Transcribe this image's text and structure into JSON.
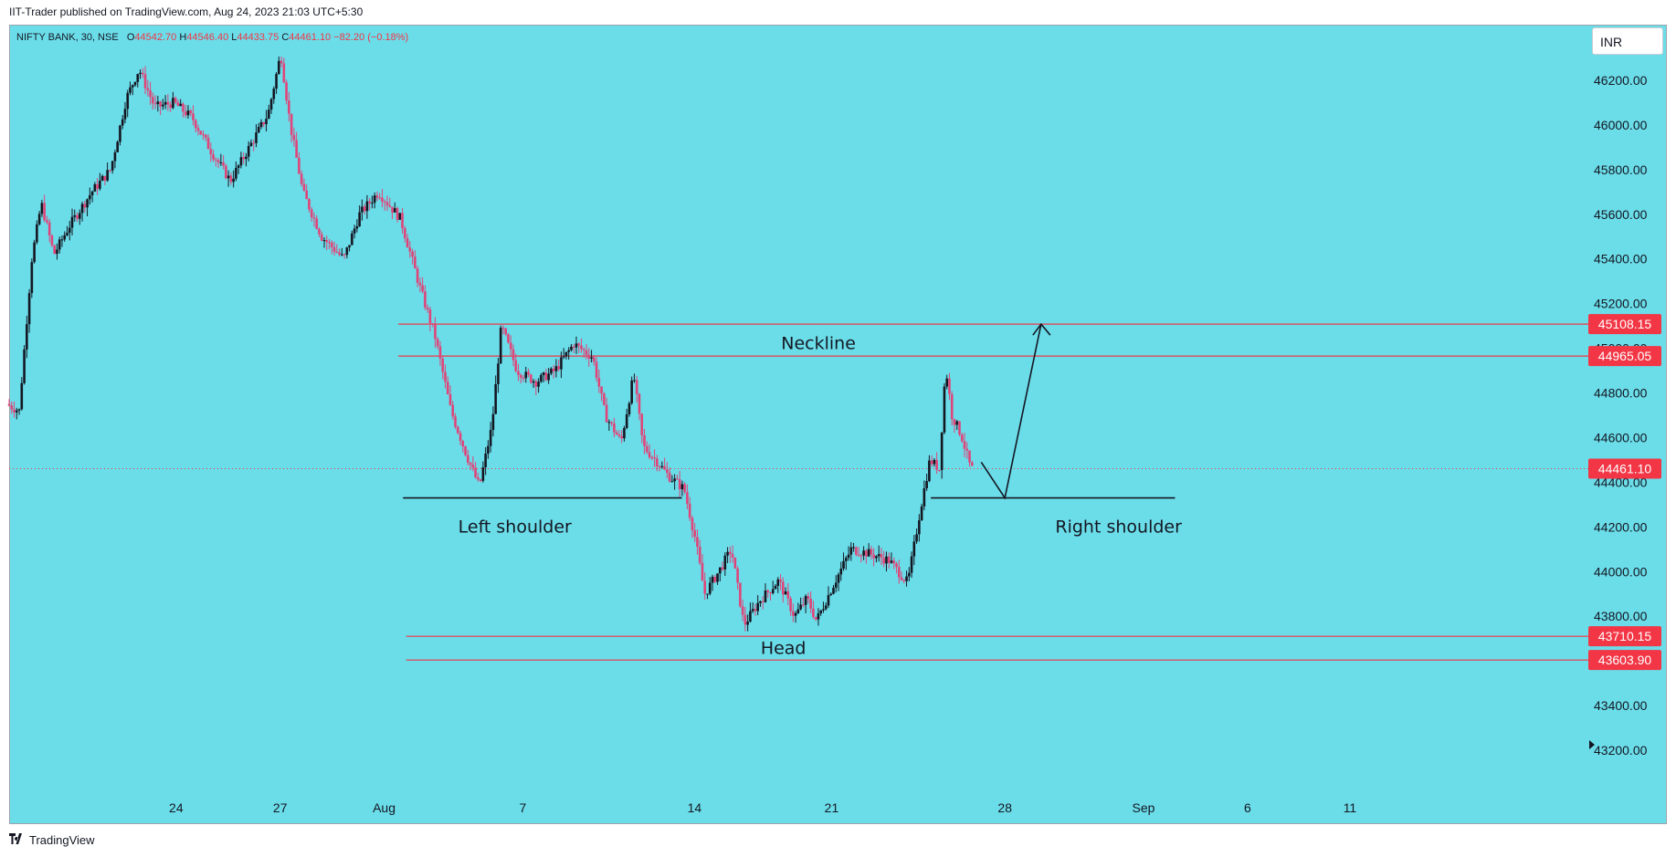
{
  "header": {
    "published_text": "IIT-Trader published on TradingView.com, Aug 24, 2023 21:03 UTC+5:30"
  },
  "symbol": {
    "name": "NIFTY BANK, 30, NSE",
    "o_label": "O",
    "o_value": "44542.70",
    "h_label": "H",
    "h_value": "44546.40",
    "l_label": "L",
    "l_value": "44433.75",
    "c_label": "C",
    "c_value": "44461.10",
    "change": "−82.20 (−0.18%)"
  },
  "currency": "INR",
  "footer": {
    "logo_icon": "tradingview-logo-icon",
    "brand": "TradingView"
  },
  "colors": {
    "background": "#6bdde9",
    "up_candle": "#131722",
    "down_candle": "#e04478",
    "level_line": "#f23645",
    "price_tag": "#f23645",
    "drawing": "#131722"
  },
  "chart_data": {
    "type": "candlestick",
    "title": "NIFTY BANK, 30, NSE",
    "y_axis": {
      "position": "right",
      "range": [
        43100,
        46550
      ],
      "ticks": [
        "46200.00",
        "46000.00",
        "45800.00",
        "45600.00",
        "45400.00",
        "45200.00",
        "45000.00",
        "44800.00",
        "44600.00",
        "44400.00",
        "44200.00",
        "44000.00",
        "43800.00",
        "43400.00",
        "43200.00"
      ]
    },
    "x_axis": {
      "ticks": [
        {
          "label": "24",
          "t": 0.106
        },
        {
          "label": "27",
          "t": 0.172
        },
        {
          "label": "Aug",
          "t": 0.238
        },
        {
          "label": "7",
          "t": 0.326
        },
        {
          "label": "14",
          "t": 0.435
        },
        {
          "label": "21",
          "t": 0.522
        },
        {
          "label": "28",
          "t": 0.632
        },
        {
          "label": "Sep",
          "t": 0.72
        },
        {
          "label": "6",
          "t": 0.786
        },
        {
          "label": "11",
          "t": 0.851
        }
      ]
    },
    "price_path": [
      [
        0.0,
        44750
      ],
      [
        0.008,
        44720
      ],
      [
        0.016,
        45400
      ],
      [
        0.022,
        45650
      ],
      [
        0.03,
        45420
      ],
      [
        0.04,
        45550
      ],
      [
        0.054,
        45700
      ],
      [
        0.066,
        45800
      ],
      [
        0.076,
        46120
      ],
      [
        0.084,
        46250
      ],
      [
        0.094,
        46080
      ],
      [
        0.106,
        46100
      ],
      [
        0.118,
        46030
      ],
      [
        0.13,
        45880
      ],
      [
        0.142,
        45750
      ],
      [
        0.154,
        45900
      ],
      [
        0.166,
        46050
      ],
      [
        0.174,
        46320
      ],
      [
        0.18,
        46000
      ],
      [
        0.188,
        45700
      ],
      [
        0.2,
        45500
      ],
      [
        0.214,
        45400
      ],
      [
        0.224,
        45600
      ],
      [
        0.236,
        45700
      ],
      [
        0.25,
        45580
      ],
      [
        0.262,
        45280
      ],
      [
        0.272,
        45050
      ],
      [
        0.282,
        44720
      ],
      [
        0.292,
        44520
      ],
      [
        0.3,
        44380
      ],
      [
        0.308,
        44650
      ],
      [
        0.314,
        45100
      ],
      [
        0.324,
        44900
      ],
      [
        0.336,
        44850
      ],
      [
        0.348,
        44900
      ],
      [
        0.36,
        45020
      ],
      [
        0.372,
        44960
      ],
      [
        0.38,
        44700
      ],
      [
        0.39,
        44580
      ],
      [
        0.398,
        44880
      ],
      [
        0.404,
        44560
      ],
      [
        0.412,
        44500
      ],
      [
        0.42,
        44430
      ],
      [
        0.43,
        44370
      ],
      [
        0.437,
        44150
      ],
      [
        0.443,
        43900
      ],
      [
        0.452,
        44000
      ],
      [
        0.46,
        44100
      ],
      [
        0.468,
        43760
      ],
      [
        0.478,
        43870
      ],
      [
        0.49,
        43960
      ],
      [
        0.5,
        43800
      ],
      [
        0.508,
        43880
      ],
      [
        0.514,
        43780
      ],
      [
        0.524,
        43930
      ],
      [
        0.536,
        44100
      ],
      [
        0.548,
        44080
      ],
      [
        0.56,
        44050
      ],
      [
        0.572,
        43950
      ],
      [
        0.58,
        44280
      ],
      [
        0.586,
        44500
      ],
      [
        0.592,
        44460
      ],
      [
        0.596,
        44920
      ],
      [
        0.6,
        44700
      ],
      [
        0.606,
        44610
      ],
      [
        0.612,
        44460
      ]
    ],
    "price_levels": [
      {
        "label": "45108.15",
        "value": 45108.15
      },
      {
        "label": "44965.05",
        "value": 44965.05
      },
      {
        "label": "43710.15",
        "value": 43710.15
      },
      {
        "label": "43603.90",
        "value": 43603.9
      }
    ],
    "current_price": {
      "label": "44461.10",
      "value": 44461.1
    },
    "annotations": [
      {
        "text": "Neckline",
        "value": 45020,
        "t": 0.49
      },
      {
        "text": "Left shoulder",
        "value": 44200,
        "t": 0.285
      },
      {
        "text": "Right shoulder",
        "value": 44200,
        "t": 0.664
      },
      {
        "text": "Head",
        "value": 43655,
        "t": 0.477
      }
    ],
    "trend_lines": [
      {
        "name": "left-shoulder-line",
        "points": [
          [
            0.25,
            44330
          ],
          [
            0.427,
            44330
          ]
        ]
      },
      {
        "name": "right-shoulder-line",
        "points": [
          [
            0.585,
            44330
          ],
          [
            0.74,
            44330
          ]
        ]
      },
      {
        "name": "projection-arrow",
        "points": [
          [
            0.617,
            44490
          ],
          [
            0.632,
            44330
          ],
          [
            0.655,
            45108
          ]
        ]
      }
    ]
  }
}
